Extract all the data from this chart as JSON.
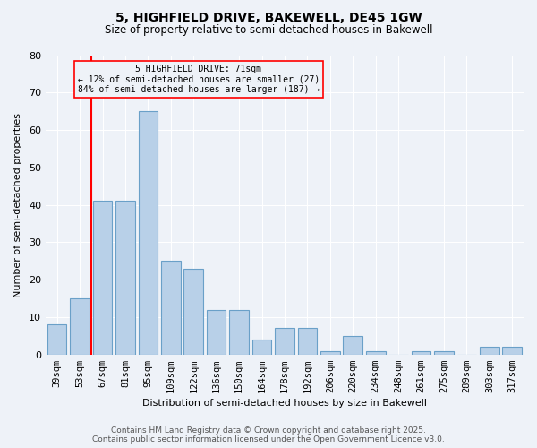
{
  "title1": "5, HIGHFIELD DRIVE, BAKEWELL, DE45 1GW",
  "title2": "Size of property relative to semi-detached houses in Bakewell",
  "xlabel": "Distribution of semi-detached houses by size in Bakewell",
  "ylabel": "Number of semi-detached properties",
  "categories": [
    "39sqm",
    "53sqm",
    "67sqm",
    "81sqm",
    "95sqm",
    "109sqm",
    "122sqm",
    "136sqm",
    "150sqm",
    "164sqm",
    "178sqm",
    "192sqm",
    "206sqm",
    "220sqm",
    "234sqm",
    "248sqm",
    "261sqm",
    "275sqm",
    "289sqm",
    "303sqm",
    "317sqm"
  ],
  "values": [
    8,
    15,
    41,
    41,
    65,
    25,
    23,
    12,
    12,
    4,
    7,
    7,
    1,
    5,
    1,
    0,
    1,
    1,
    0,
    2,
    2
  ],
  "bar_color": "#b8d0e8",
  "bar_edge_color": "#6aa0c8",
  "red_line_x": 1.5,
  "annotation_title": "5 HIGHFIELD DRIVE: 71sqm",
  "annotation_line1": "← 12% of semi-detached houses are smaller (27)",
  "annotation_line2": "84% of semi-detached houses are larger (187) →",
  "ylim": [
    0,
    80
  ],
  "yticks": [
    0,
    10,
    20,
    30,
    40,
    50,
    60,
    70,
    80
  ],
  "footer1": "Contains HM Land Registry data © Crown copyright and database right 2025.",
  "footer2": "Contains public sector information licensed under the Open Government Licence v3.0.",
  "bg_color": "#eef2f8",
  "grid_color": "#ffffff",
  "title1_fontsize": 10,
  "title2_fontsize": 8.5,
  "axis_label_fontsize": 8,
  "tick_fontsize": 7.5,
  "footer_fontsize": 6.5
}
